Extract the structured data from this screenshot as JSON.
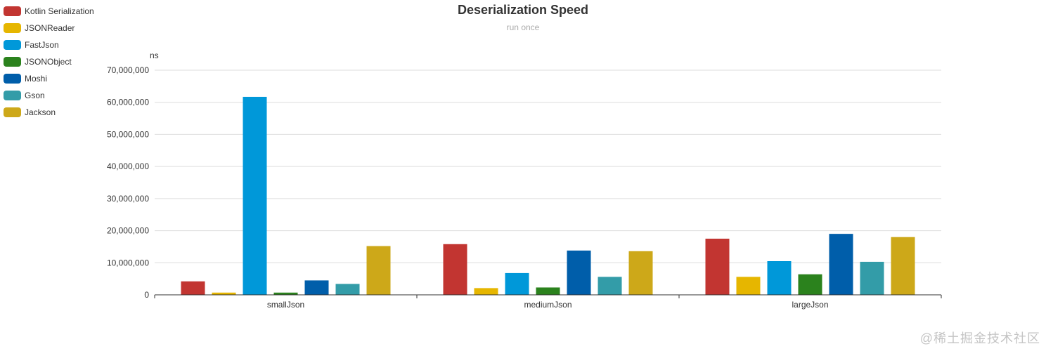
{
  "watermark": "@稀土掘金技术社区",
  "colors": {
    "background": "#ffffff",
    "grid": "#dddddd",
    "axis": "#333333",
    "text": "#333333",
    "subtitle": "#aaaaaa"
  },
  "chart_data": {
    "type": "bar",
    "title": "Deserialization Speed",
    "subtitle": "run once",
    "ylabel": "ns",
    "xlabel": "",
    "ylim": [
      0,
      70000000
    ],
    "yticks": [
      0,
      10000000,
      20000000,
      30000000,
      40000000,
      50000000,
      60000000,
      70000000
    ],
    "ytick_labels": [
      "0",
      "10,000,000",
      "20,000,000",
      "30,000,000",
      "40,000,000",
      "50,000,000",
      "60,000,000",
      "70,000,000"
    ],
    "grid": true,
    "legend_position": "top-left",
    "categories": [
      "smallJson",
      "mediumJson",
      "largeJson"
    ],
    "series": [
      {
        "name": "Kotlin Serialization",
        "color": "#c23531",
        "values": [
          4200000,
          15800000,
          17500000
        ]
      },
      {
        "name": "JSONReader",
        "color": "#e6b600",
        "values": [
          700000,
          2100000,
          5600000
        ]
      },
      {
        "name": "FastJson",
        "color": "#0098d9",
        "values": [
          61700000,
          6800000,
          10500000
        ]
      },
      {
        "name": "JSONObject",
        "color": "#2b821d",
        "values": [
          700000,
          2300000,
          6400000
        ]
      },
      {
        "name": "Moshi",
        "color": "#005eaa",
        "values": [
          4500000,
          13800000,
          19000000
        ]
      },
      {
        "name": "Gson",
        "color": "#339ca8",
        "values": [
          3400000,
          5600000,
          10300000
        ]
      },
      {
        "name": "Jackson",
        "color": "#cda819",
        "values": [
          15200000,
          13600000,
          18000000
        ]
      }
    ]
  }
}
